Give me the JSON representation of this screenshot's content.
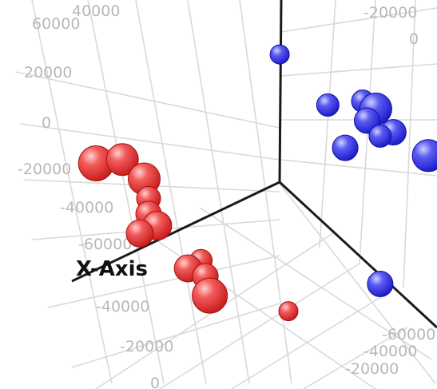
{
  "chart_data": {
    "type": "scatter",
    "dimensions": "3d",
    "title": "",
    "axis_labels": {
      "x": "X-Axis"
    },
    "tick_labels": {
      "upper_left": [
        "60000",
        "40000",
        "20000",
        "0",
        "-20000",
        "-40000",
        "-60000"
      ],
      "lower": [
        "-40000",
        "-20000",
        "0"
      ],
      "upper_right": [
        "-20000",
        "0"
      ],
      "lower_right": [
        "-60000",
        "-40000",
        "-20000"
      ]
    },
    "grid": true,
    "series": [
      {
        "color": "#e83a3a",
        "points": [
          {
            "x": 0.22,
            "y": 0.42,
            "size": 22
          },
          {
            "x": 0.28,
            "y": 0.41,
            "size": 20
          },
          {
            "x": 0.33,
            "y": 0.46,
            "size": 20
          },
          {
            "x": 0.34,
            "y": 0.51,
            "size": 15
          },
          {
            "x": 0.34,
            "y": 0.55,
            "size": 16
          },
          {
            "x": 0.36,
            "y": 0.58,
            "size": 18
          },
          {
            "x": 0.32,
            "y": 0.6,
            "size": 17
          },
          {
            "x": 0.46,
            "y": 0.67,
            "size": 14
          },
          {
            "x": 0.43,
            "y": 0.69,
            "size": 17
          },
          {
            "x": 0.47,
            "y": 0.71,
            "size": 16
          },
          {
            "x": 0.48,
            "y": 0.76,
            "size": 22
          },
          {
            "x": 0.66,
            "y": 0.8,
            "size": 12
          }
        ]
      },
      {
        "color": "#3a3ae8",
        "points": [
          {
            "x": 0.64,
            "y": 0.14,
            "size": 12
          },
          {
            "x": 0.75,
            "y": 0.27,
            "size": 14
          },
          {
            "x": 0.83,
            "y": 0.26,
            "size": 14
          },
          {
            "x": 0.86,
            "y": 0.28,
            "size": 20
          },
          {
            "x": 0.84,
            "y": 0.31,
            "size": 16
          },
          {
            "x": 0.9,
            "y": 0.34,
            "size": 16
          },
          {
            "x": 0.87,
            "y": 0.35,
            "size": 14
          },
          {
            "x": 0.79,
            "y": 0.38,
            "size": 16
          },
          {
            "x": 0.98,
            "y": 0.4,
            "size": 20
          },
          {
            "x": 0.87,
            "y": 0.73,
            "size": 16
          }
        ]
      }
    ]
  }
}
